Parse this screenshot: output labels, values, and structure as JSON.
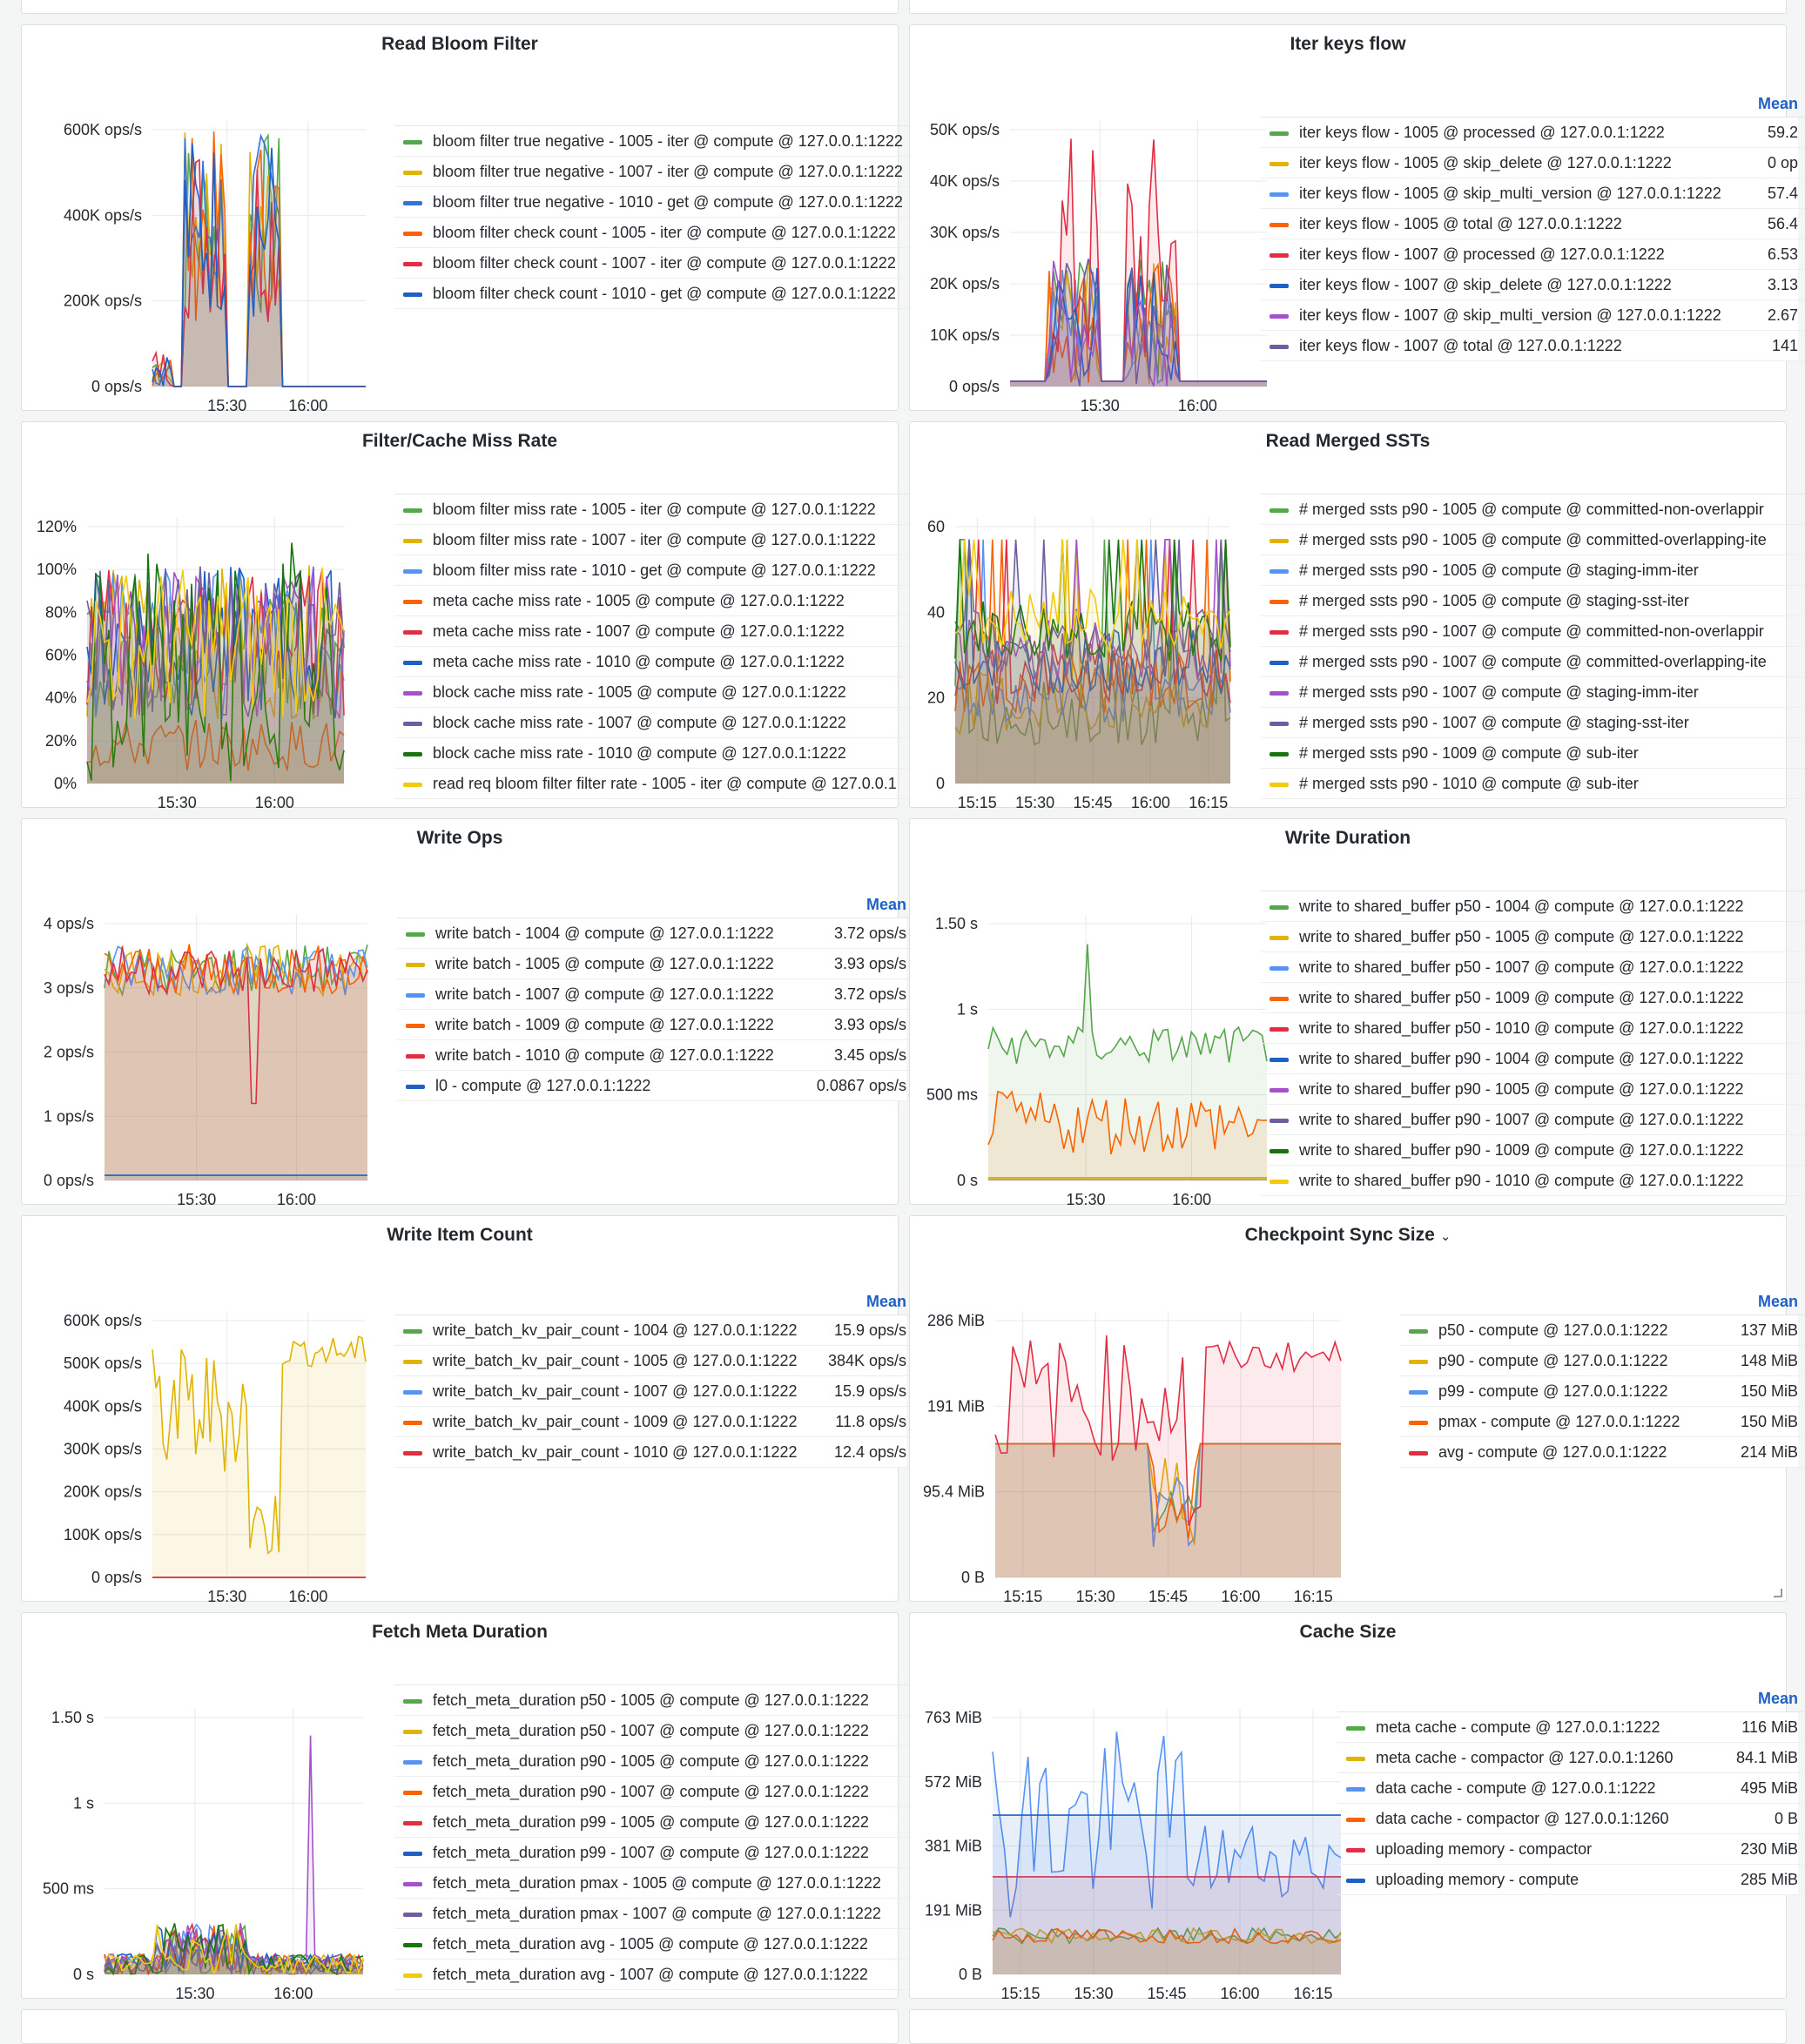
{
  "panels": [
    {
      "title": "Read Bloom Filter",
      "yticks": [
        "600K ops/s",
        "400K ops/s",
        "200K ops/s",
        "0 ops/s"
      ],
      "xticks": [
        "15:30",
        "16:00"
      ],
      "mean_header": "",
      "legend": [
        {
          "label": "bloom filter true negative - 1005 - iter @ compute @ 127.0.0.1:1222",
          "color": "#56a64b",
          "value": ""
        },
        {
          "label": "bloom filter true negative - 1007 - iter @ compute @ 127.0.0.1:1222",
          "color": "#e0b400",
          "value": ""
        },
        {
          "label": "bloom filter true negative - 1010 - get @ compute @ 127.0.0.1:1222",
          "color": "#3274d9",
          "value": ""
        },
        {
          "label": "bloom filter check count - 1005 - iter @ compute @ 127.0.0.1:1222",
          "color": "#fa6400",
          "value": ""
        },
        {
          "label": "bloom filter check count - 1007 - iter @ compute @ 127.0.0.1:1222",
          "color": "#e02f44",
          "value": ""
        },
        {
          "label": "bloom filter check count - 1010 - get @ compute @ 127.0.0.1:1222",
          "color": "#1f60c4",
          "value": ""
        }
      ]
    },
    {
      "title": "Iter keys flow",
      "yticks": [
        "50K ops/s",
        "40K ops/s",
        "30K ops/s",
        "20K ops/s",
        "10K ops/s",
        "0 ops/s"
      ],
      "xticks": [
        "15:30",
        "16:00"
      ],
      "mean_header": "Mean",
      "legend": [
        {
          "label": "iter keys flow - 1005 @ processed @ 127.0.0.1:1222",
          "color": "#56a64b",
          "value": "59.2"
        },
        {
          "label": "iter keys flow - 1005 @ skip_delete @ 127.0.0.1:1222",
          "color": "#e0b400",
          "value": "0 op"
        },
        {
          "label": "iter keys flow - 1005 @ skip_multi_version @ 127.0.0.1:1222",
          "color": "#5794f2",
          "value": "57.4"
        },
        {
          "label": "iter keys flow - 1005 @ total @ 127.0.0.1:1222",
          "color": "#fa6400",
          "value": "56.4"
        },
        {
          "label": "iter keys flow - 1007 @ processed @ 127.0.0.1:1222",
          "color": "#e02f44",
          "value": "6.53"
        },
        {
          "label": "iter keys flow - 1007 @ skip_delete @ 127.0.0.1:1222",
          "color": "#1f60c4",
          "value": "3.13"
        },
        {
          "label": "iter keys flow - 1007 @ skip_multi_version @ 127.0.0.1:1222",
          "color": "#a352cc",
          "value": "2.67"
        },
        {
          "label": "iter keys flow - 1007 @ total @ 127.0.0.1:1222",
          "color": "#705da0",
          "value": "141"
        }
      ]
    },
    {
      "title": "Filter/Cache Miss Rate",
      "yticks": [
        "120%",
        "100%",
        "80%",
        "60%",
        "40%",
        "20%",
        "0%"
      ],
      "xticks": [
        "15:30",
        "16:00"
      ],
      "mean_header": "",
      "legend": [
        {
          "label": "bloom filter miss rate - 1005 - iter @ compute @ 127.0.0.1:1222",
          "color": "#56a64b",
          "value": ""
        },
        {
          "label": "bloom filter miss rate - 1007 - iter @ compute @ 127.0.0.1:1222",
          "color": "#e0b400",
          "value": ""
        },
        {
          "label": "bloom filter miss rate - 1010 - get @ compute @ 127.0.0.1:1222",
          "color": "#5794f2",
          "value": ""
        },
        {
          "label": "meta cache miss rate - 1005 @ compute @ 127.0.0.1:1222",
          "color": "#fa6400",
          "value": ""
        },
        {
          "label": "meta cache miss rate - 1007 @ compute @ 127.0.0.1:1222",
          "color": "#e02f44",
          "value": ""
        },
        {
          "label": "meta cache miss rate - 1010 @ compute @ 127.0.0.1:1222",
          "color": "#1f60c4",
          "value": ""
        },
        {
          "label": "block cache miss rate - 1005 @ compute @ 127.0.0.1:1222",
          "color": "#a352cc",
          "value": ""
        },
        {
          "label": "block cache miss rate - 1007 @ compute @ 127.0.0.1:1222",
          "color": "#705da0",
          "value": ""
        },
        {
          "label": "block cache miss rate - 1010 @ compute @ 127.0.0.1:1222",
          "color": "#19730e",
          "value": ""
        },
        {
          "label": "read req bloom filter filter rate - 1005 - iter @ compute @ 127.0.0.1",
          "color": "#f2cc0c",
          "value": ""
        }
      ]
    },
    {
      "title": "Read Merged SSTs",
      "yticks": [
        "60",
        "40",
        "20",
        "0"
      ],
      "xticks": [
        "15:15",
        "15:30",
        "15:45",
        "16:00",
        "16:15"
      ],
      "mean_header": "",
      "legend": [
        {
          "label": "# merged ssts p90 - 1005 @ compute @ committed-non-overlappir",
          "color": "#56a64b",
          "value": ""
        },
        {
          "label": "# merged ssts p90 - 1005 @ compute @ committed-overlapping-ite",
          "color": "#e0b400",
          "value": ""
        },
        {
          "label": "# merged ssts p90 - 1005 @ compute @ staging-imm-iter",
          "color": "#5794f2",
          "value": ""
        },
        {
          "label": "# merged ssts p90 - 1005 @ compute @ staging-sst-iter",
          "color": "#fa6400",
          "value": ""
        },
        {
          "label": "# merged ssts p90 - 1007 @ compute @ committed-non-overlappir",
          "color": "#e02f44",
          "value": ""
        },
        {
          "label": "# merged ssts p90 - 1007 @ compute @ committed-overlapping-ite",
          "color": "#1f60c4",
          "value": ""
        },
        {
          "label": "# merged ssts p90 - 1007 @ compute @ staging-imm-iter",
          "color": "#a352cc",
          "value": ""
        },
        {
          "label": "# merged ssts p90 - 1007 @ compute @ staging-sst-iter",
          "color": "#705da0",
          "value": ""
        },
        {
          "label": "# merged ssts p90 - 1009 @ compute @ sub-iter",
          "color": "#19730e",
          "value": ""
        },
        {
          "label": "# merged ssts p90 - 1010 @ compute @ sub-iter",
          "color": "#f2cc0c",
          "value": ""
        }
      ]
    },
    {
      "title": "Write Ops",
      "yticks": [
        "4 ops/s",
        "3 ops/s",
        "2 ops/s",
        "1 ops/s",
        "0 ops/s"
      ],
      "xticks": [
        "15:30",
        "16:00"
      ],
      "mean_header": "Mean",
      "legend": [
        {
          "label": "write batch - 1004 @ compute @ 127.0.0.1:1222",
          "color": "#56a64b",
          "value": "3.72 ops/s"
        },
        {
          "label": "write batch - 1005 @ compute @ 127.0.0.1:1222",
          "color": "#e0b400",
          "value": "3.93 ops/s"
        },
        {
          "label": "write batch - 1007 @ compute @ 127.0.0.1:1222",
          "color": "#5794f2",
          "value": "3.72 ops/s"
        },
        {
          "label": "write batch - 1009 @ compute @ 127.0.0.1:1222",
          "color": "#fa6400",
          "value": "3.93 ops/s"
        },
        {
          "label": "write batch - 1010 @ compute @ 127.0.0.1:1222",
          "color": "#e02f44",
          "value": "3.45 ops/s"
        },
        {
          "label": "l0 - compute @ 127.0.0.1:1222",
          "color": "#1f60c4",
          "value": "0.0867 ops/s"
        }
      ]
    },
    {
      "title": "Write Duration",
      "yticks": [
        "1.50 s",
        "1 s",
        "500 ms",
        "0 s"
      ],
      "xticks": [
        "15:30",
        "16:00"
      ],
      "mean_header": "",
      "legend": [
        {
          "label": "write to shared_buffer p50 - 1004 @ compute @ 127.0.0.1:1222",
          "color": "#56a64b",
          "value": ""
        },
        {
          "label": "write to shared_buffer p50 - 1005 @ compute @ 127.0.0.1:1222",
          "color": "#e0b400",
          "value": ""
        },
        {
          "label": "write to shared_buffer p50 - 1007 @ compute @ 127.0.0.1:1222",
          "color": "#5794f2",
          "value": ""
        },
        {
          "label": "write to shared_buffer p50 - 1009 @ compute @ 127.0.0.1:1222",
          "color": "#fa6400",
          "value": ""
        },
        {
          "label": "write to shared_buffer p50 - 1010 @ compute @ 127.0.0.1:1222",
          "color": "#e02f44",
          "value": ""
        },
        {
          "label": "write to shared_buffer p90 - 1004 @ compute @ 127.0.0.1:1222",
          "color": "#1f60c4",
          "value": ""
        },
        {
          "label": "write to shared_buffer p90 - 1005 @ compute @ 127.0.0.1:1222",
          "color": "#a352cc",
          "value": ""
        },
        {
          "label": "write to shared_buffer p90 - 1007 @ compute @ 127.0.0.1:1222",
          "color": "#705da0",
          "value": ""
        },
        {
          "label": "write to shared_buffer p90 - 1009 @ compute @ 127.0.0.1:1222",
          "color": "#19730e",
          "value": ""
        },
        {
          "label": "write to shared_buffer p90 - 1010 @ compute @ 127.0.0.1:1222",
          "color": "#f2cc0c",
          "value": ""
        }
      ]
    },
    {
      "title": "Write Item Count",
      "yticks": [
        "600K ops/s",
        "500K ops/s",
        "400K ops/s",
        "300K ops/s",
        "200K ops/s",
        "100K ops/s",
        "0 ops/s"
      ],
      "xticks": [
        "15:30",
        "16:00"
      ],
      "mean_header": "Mean",
      "legend": [
        {
          "label": "write_batch_kv_pair_count - 1004 @ 127.0.0.1:1222",
          "color": "#56a64b",
          "value": "15.9 ops/s"
        },
        {
          "label": "write_batch_kv_pair_count - 1005 @ 127.0.0.1:1222",
          "color": "#e0b400",
          "value": "384K ops/s"
        },
        {
          "label": "write_batch_kv_pair_count - 1007 @ 127.0.0.1:1222",
          "color": "#5794f2",
          "value": "15.9 ops/s"
        },
        {
          "label": "write_batch_kv_pair_count - 1009 @ 127.0.0.1:1222",
          "color": "#fa6400",
          "value": "11.8 ops/s"
        },
        {
          "label": "write_batch_kv_pair_count - 1010 @ 127.0.0.1:1222",
          "color": "#e02f44",
          "value": "12.4 ops/s"
        }
      ]
    },
    {
      "title": "Checkpoint Sync Size",
      "yticks": [
        "286 MiB",
        "191 MiB",
        "95.4 MiB",
        "0 B"
      ],
      "xticks": [
        "15:15",
        "15:30",
        "15:45",
        "16:00",
        "16:15"
      ],
      "mean_header": "Mean",
      "legend": [
        {
          "label": "p50 - compute @ 127.0.0.1:1222",
          "color": "#56a64b",
          "value": "137 MiB"
        },
        {
          "label": "p90 - compute @ 127.0.0.1:1222",
          "color": "#e0b400",
          "value": "148 MiB"
        },
        {
          "label": "p99 - compute @ 127.0.0.1:1222",
          "color": "#5794f2",
          "value": "150 MiB"
        },
        {
          "label": "pmax - compute @ 127.0.0.1:1222",
          "color": "#fa6400",
          "value": "150 MiB"
        },
        {
          "label": "avg - compute @ 127.0.0.1:1222",
          "color": "#e02f44",
          "value": "214 MiB"
        }
      ]
    },
    {
      "title": "Fetch Meta Duration",
      "yticks": [
        "1.50 s",
        "1 s",
        "500 ms",
        "0 s"
      ],
      "xticks": [
        "15:30",
        "16:00"
      ],
      "mean_header": "",
      "legend": [
        {
          "label": "fetch_meta_duration p50 - 1005 @ compute @ 127.0.0.1:1222",
          "color": "#56a64b",
          "value": ""
        },
        {
          "label": "fetch_meta_duration p50 - 1007 @ compute @ 127.0.0.1:1222",
          "color": "#e0b400",
          "value": ""
        },
        {
          "label": "fetch_meta_duration p90 - 1005 @ compute @ 127.0.0.1:1222",
          "color": "#5794f2",
          "value": ""
        },
        {
          "label": "fetch_meta_duration p90 - 1007 @ compute @ 127.0.0.1:1222",
          "color": "#fa6400",
          "value": ""
        },
        {
          "label": "fetch_meta_duration p99 - 1005 @ compute @ 127.0.0.1:1222",
          "color": "#e02f44",
          "value": ""
        },
        {
          "label": "fetch_meta_duration p99 - 1007 @ compute @ 127.0.0.1:1222",
          "color": "#1f60c4",
          "value": ""
        },
        {
          "label": "fetch_meta_duration pmax - 1005 @ compute @ 127.0.0.1:1222",
          "color": "#a352cc",
          "value": ""
        },
        {
          "label": "fetch_meta_duration pmax - 1007 @ compute @ 127.0.0.1:1222",
          "color": "#705da0",
          "value": ""
        },
        {
          "label": "fetch_meta_duration avg - 1005 @ compute @ 127.0.0.1:1222",
          "color": "#19730e",
          "value": ""
        },
        {
          "label": "fetch_meta_duration avg - 1007 @ compute @ 127.0.0.1:1222",
          "color": "#f2cc0c",
          "value": ""
        }
      ]
    },
    {
      "title": "Cache Size",
      "yticks": [
        "763 MiB",
        "572 MiB",
        "381 MiB",
        "191 MiB",
        "0 B"
      ],
      "xticks": [
        "15:15",
        "15:30",
        "15:45",
        "16:00",
        "16:15"
      ],
      "mean_header": "Mean",
      "legend": [
        {
          "label": "meta cache - compute @ 127.0.0.1:1222",
          "color": "#56a64b",
          "value": "116 MiB"
        },
        {
          "label": "meta cache - compactor @ 127.0.0.1:1260",
          "color": "#e0b400",
          "value": "84.1 MiB"
        },
        {
          "label": "data cache - compute @ 127.0.0.1:1222",
          "color": "#5794f2",
          "value": "495 MiB"
        },
        {
          "label": "data cache - compactor @ 127.0.0.1:1260",
          "color": "#fa6400",
          "value": "0 B"
        },
        {
          "label": "uploading memory - compactor",
          "color": "#e02f44",
          "value": "230 MiB"
        },
        {
          "label": "uploading memory - compute",
          "color": "#1f60c4",
          "value": "285 MiB"
        }
      ]
    }
  ]
}
